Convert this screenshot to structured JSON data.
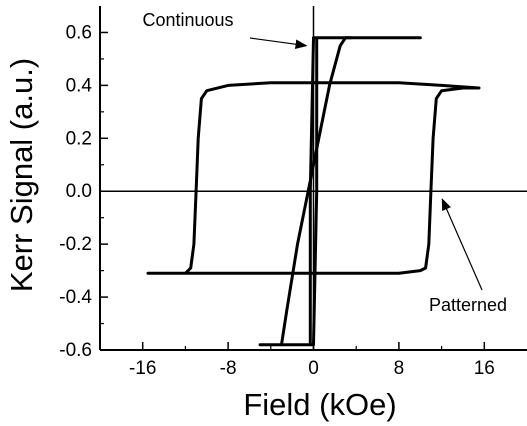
{
  "chart_data": {
    "type": "line",
    "title": "",
    "xlabel": "Field (kOe)",
    "ylabel": "Kerr Signal (a.u.)",
    "xlim": [
      -20,
      20
    ],
    "ylim": [
      -0.6,
      0.7
    ],
    "x_ticks": [
      -16,
      -8,
      0,
      8,
      16
    ],
    "y_ticks": [
      -0.6,
      -0.4,
      -0.2,
      0.0,
      0.2,
      0.4,
      0.6
    ],
    "x_tick_labels": [
      "-16",
      "-8",
      "0",
      "8",
      "16"
    ],
    "y_tick_labels": [
      "-0.6",
      "-0.4",
      "-0.2",
      "0.0",
      "0.2",
      "0.4",
      "0.6"
    ],
    "reference_lines": {
      "horizontal_at_y": 0.0,
      "vertical_at_x": 0.0
    },
    "grid": false,
    "series": [
      {
        "x": [
          -15.5,
          -14,
          -12,
          -11.5,
          -11.2,
          -11,
          -10.8,
          -10.5,
          -10,
          -8,
          -4,
          0,
          4,
          8,
          12,
          15.5,
          15.5,
          14,
          12,
          11.5,
          11.2,
          11,
          10.8,
          10.5,
          10,
          8,
          4,
          0,
          -4,
          -8,
          -12,
          -15.5
        ],
        "y": [
          -0.31,
          -0.31,
          -0.31,
          -0.29,
          -0.2,
          0.0,
          0.2,
          0.35,
          0.38,
          0.4,
          0.41,
          0.41,
          0.41,
          0.41,
          0.4,
          0.39,
          0.39,
          0.39,
          0.38,
          0.35,
          0.2,
          0.0,
          -0.2,
          -0.29,
          -0.3,
          -0.31,
          -0.31,
          -0.31,
          -0.31,
          -0.31,
          -0.31,
          -0.31
        ]
      },
      {
        "x": [
          -5,
          -3,
          -2,
          -1,
          -0.5,
          -0.3,
          -0.3,
          0,
          1,
          2,
          3,
          5,
          10,
          5,
          3,
          0.3,
          0.3,
          0,
          -0.5,
          -1,
          -3,
          -5
        ],
        "y": [
          -0.58,
          -0.58,
          -0.58,
          -0.58,
          -0.58,
          -0.58,
          0.0,
          0.58,
          0.58,
          0.58,
          0.58,
          0.58,
          0.58,
          0.58,
          0.58,
          0.58,
          0.0,
          -0.58,
          -0.58,
          -0.58,
          -0.58,
          -0.58
        ]
      },
      {
        "x": [
          -3,
          -2.5,
          -1.5,
          -0.5,
          0.5,
          1.5,
          2.5,
          3,
          3.5
        ],
        "y": [
          -0.58,
          -0.45,
          -0.2,
          0.0,
          0.2,
          0.4,
          0.55,
          0.58,
          0.58
        ]
      }
    ],
    "annotations": [
      {
        "text": "Continuous",
        "points_to": {
          "x": -0.3,
          "y": 0.55
        }
      },
      {
        "text": "Patterned",
        "points_to": {
          "x": 11.5,
          "y": 0.0
        }
      }
    ]
  }
}
